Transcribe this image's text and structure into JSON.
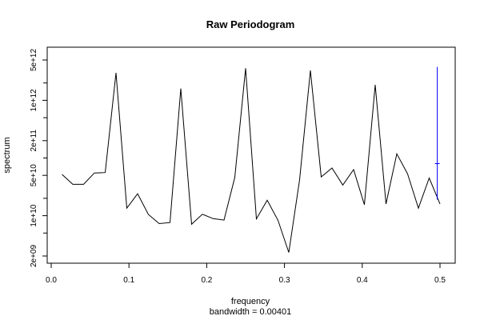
{
  "chart_data": {
    "type": "line",
    "title": "Raw Periodogram",
    "xlabel": "frequency",
    "sublabel": "bandwidth = 0.00401",
    "ylabel": "spectrum",
    "y_scale": "log",
    "xlim": [
      0,
      0.5
    ],
    "ylim": [
      2000000000.0,
      5000000000000.0
    ],
    "x_ticks": [
      0.0,
      0.1,
      0.2,
      0.3,
      0.4,
      0.5
    ],
    "x_tick_labels": [
      "0.0",
      "0.1",
      "0.2",
      "0.3",
      "0.4",
      "0.5"
    ],
    "y_major_ticks": [
      2000000000.0,
      10000000000.0,
      50000000000.0,
      200000000000.0,
      1000000000000.0,
      5000000000000.0
    ],
    "y_major_tick_labels": [
      "2e+09",
      "1e+10",
      "5e+10",
      "2e+11",
      "1e+12",
      "5e+12"
    ],
    "y_minor_ticks": [
      5000000000.0,
      20000000000.0,
      100000000000.0,
      500000000000.0,
      2000000000000.0
    ],
    "line_color": "#000000",
    "ci_color": "#0000ff",
    "series": [
      {
        "x": [
          0.0139,
          0.0278,
          0.0417,
          0.0556,
          0.0694,
          0.0833,
          0.0972,
          0.1111,
          0.125,
          0.1389,
          0.1528,
          0.1667,
          0.1806,
          0.1944,
          0.2083,
          0.2222,
          0.2361,
          0.25,
          0.2639,
          0.2778,
          0.2917,
          0.3056,
          0.3194,
          0.3333,
          0.3472,
          0.3611,
          0.375,
          0.3889,
          0.4028,
          0.4167,
          0.4306,
          0.4444,
          0.4583,
          0.4722,
          0.4861,
          0.5
        ],
        "values": [
          52000000000.0,
          35000000000.0,
          35000000000.0,
          55000000000.0,
          56000000000.0,
          3000000000000.0,
          13500000000.0,
          24000000000.0,
          10500000000.0,
          7300000000.0,
          7600000000.0,
          1600000000000.0,
          7100000000.0,
          10600000000.0,
          8900000000.0,
          8400000000.0,
          46000000000.0,
          3600000000000.0,
          8800000000.0,
          18500000000.0,
          8300000000.0,
          2300000000.0,
          42000000000.0,
          3300000000000.0,
          47000000000.0,
          67000000000.0,
          34000000000.0,
          63000000000.0,
          15500000000.0,
          1850000000000.0,
          16000000000.0,
          118000000000.0,
          53000000000.0,
          13500000000.0,
          45000000000.0,
          16000000000.0
        ]
      }
    ],
    "ci_bar": {
      "x": 0.4965,
      "lower": 19000000000.0,
      "upper": 3800000000000.0,
      "center": 80000000000.0
    }
  }
}
